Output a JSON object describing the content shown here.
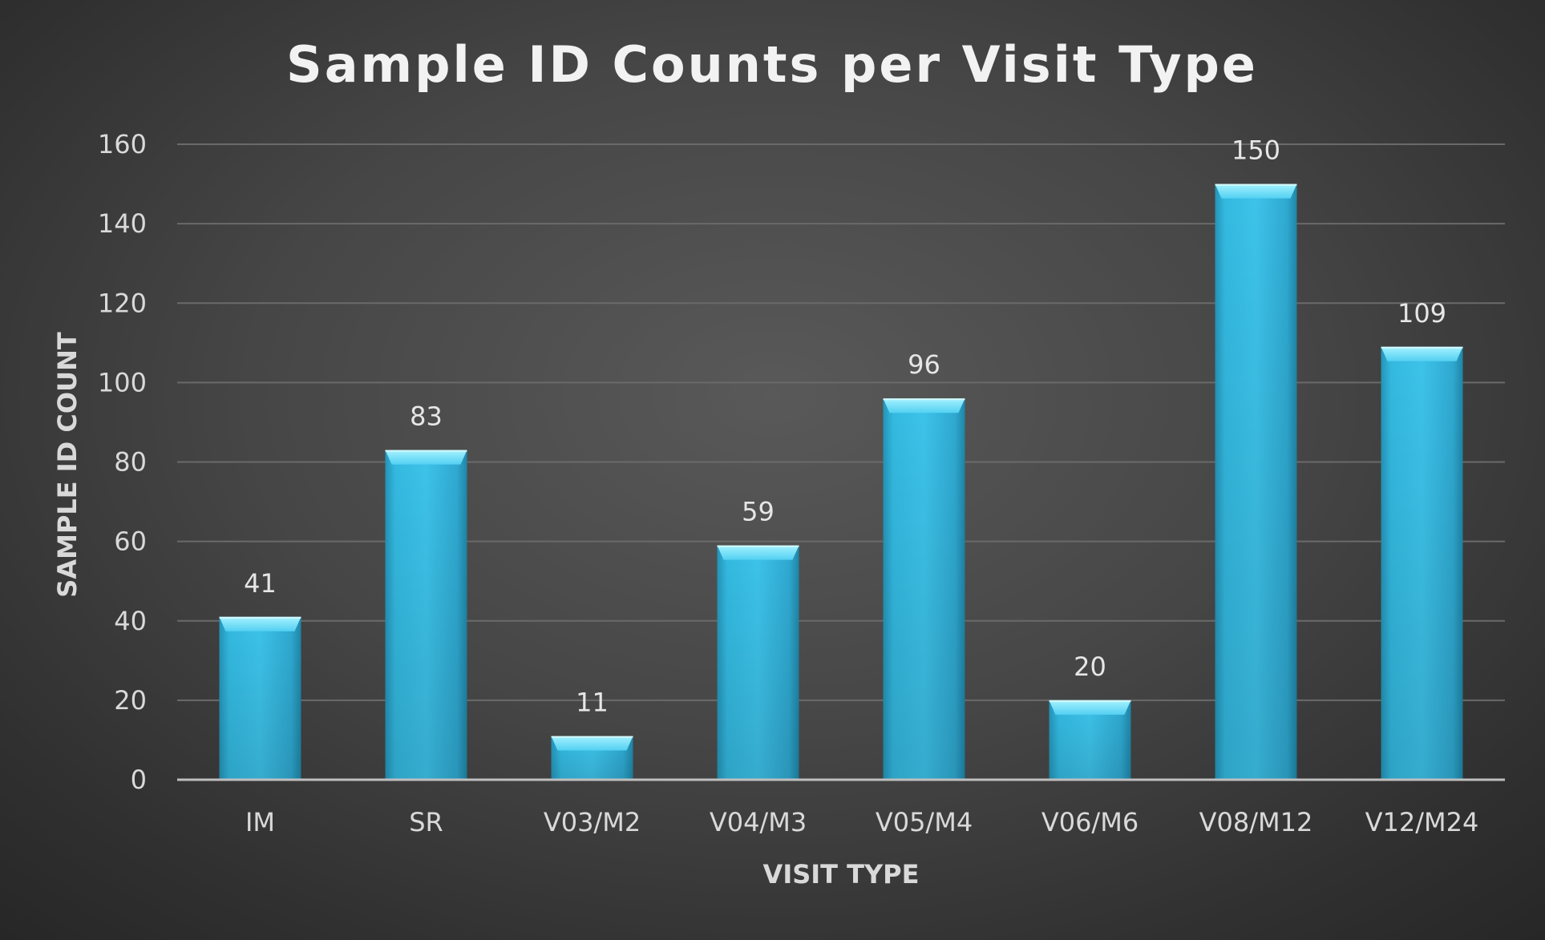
{
  "chart_data": {
    "type": "bar",
    "title": "Sample ID Counts per Visit Type",
    "xlabel": "VISIT TYPE",
    "ylabel": "SAMPLE ID COUNT",
    "categories": [
      "IM",
      "SR",
      "V03/M2",
      "V04/M3",
      "V05/M4",
      "V06/M6",
      "V08/M12",
      "V12/M24"
    ],
    "values": [
      41,
      83,
      11,
      59,
      96,
      20,
      150,
      109
    ],
    "ylim": [
      0,
      160
    ],
    "yticks": [
      0,
      20,
      40,
      60,
      80,
      100,
      120,
      140,
      160
    ],
    "grid": true,
    "legend": "none",
    "colors": {
      "bar": "#2fb4dc",
      "bar_top": "#7fe4fb",
      "background": "#4a4a4a",
      "gridline": "#6a6a6a",
      "text": "#d9d9d9"
    }
  }
}
